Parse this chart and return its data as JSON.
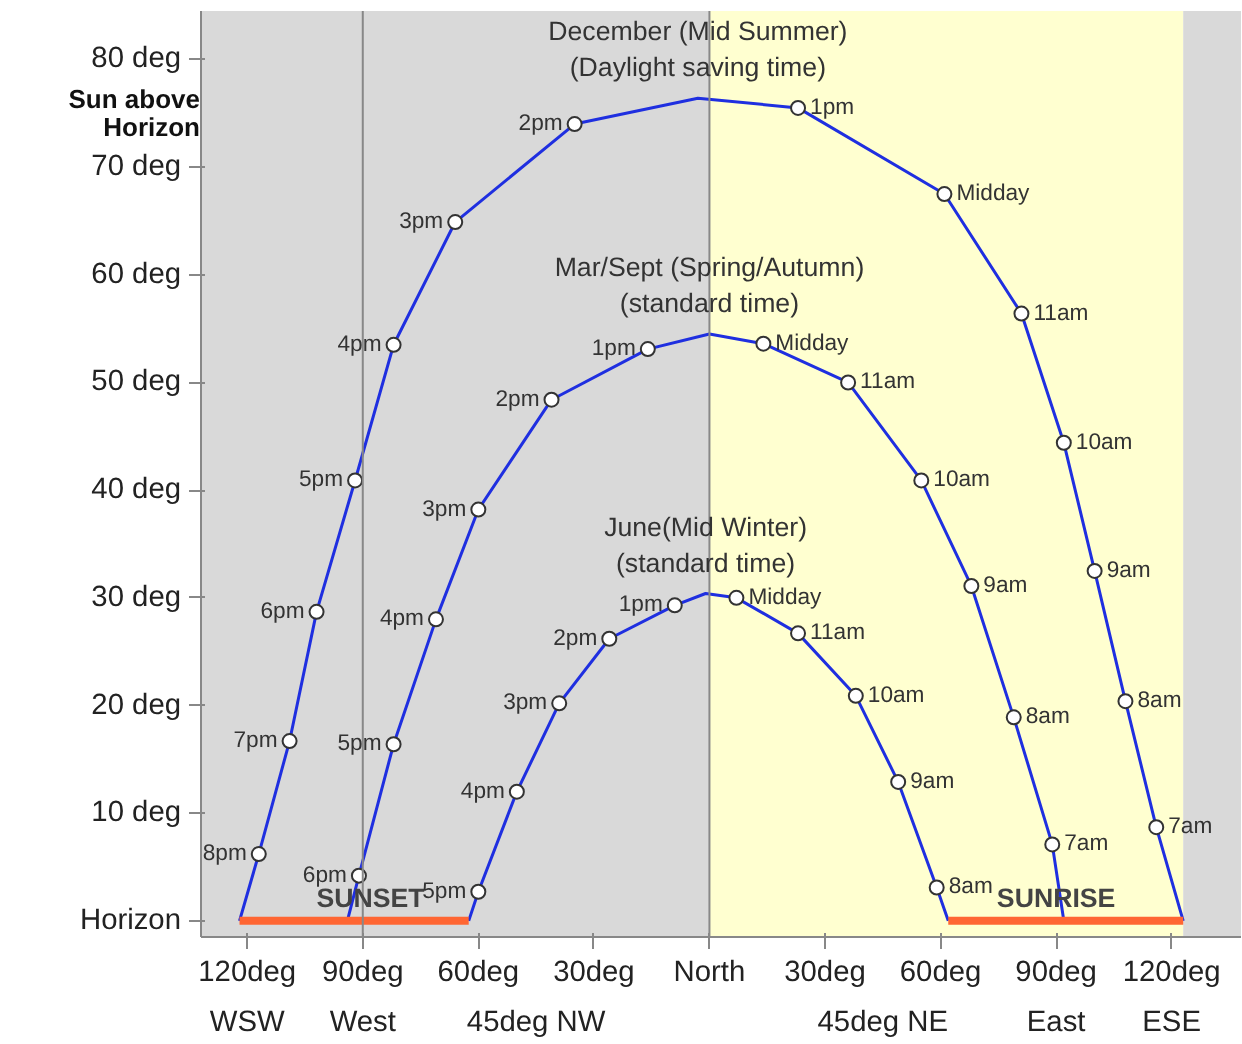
{
  "chart_data": {
    "type": "line",
    "ylabel": "Sun above\nHorizon",
    "xlim": [
      -132,
      138
    ],
    "ylim": [
      -1.5,
      84.5
    ],
    "xticks": [
      {
        "value": -120,
        "label": "120deg"
      },
      {
        "value": -90,
        "label": "90deg"
      },
      {
        "value": -60,
        "label": "60deg"
      },
      {
        "value": -30,
        "label": "30deg"
      },
      {
        "value": 0,
        "label": "North"
      },
      {
        "value": 30,
        "label": "30deg"
      },
      {
        "value": 60,
        "label": "60deg"
      },
      {
        "value": 90,
        "label": "90deg"
      },
      {
        "value": 120,
        "label": "120deg"
      }
    ],
    "x2lim": [
      -132,
      138
    ],
    "x2ticks": [
      {
        "value": -120,
        "label": "WSW"
      },
      {
        "value": -90,
        "label": "West"
      },
      {
        "value": -45,
        "label": "45deg NW"
      },
      {
        "value": 45,
        "label": "45deg NE"
      },
      {
        "value": 90,
        "label": "East"
      },
      {
        "value": 120,
        "label": "ESE"
      }
    ],
    "yticks": [
      {
        "value": 0,
        "label": "Horizon"
      },
      {
        "value": 10,
        "label": "10 deg"
      },
      {
        "value": 20,
        "label": "20 deg"
      },
      {
        "value": 30,
        "label": "30 deg"
      },
      {
        "value": 40,
        "label": "40 deg"
      },
      {
        "value": 50,
        "label": "50 deg"
      },
      {
        "value": 60,
        "label": "60 deg"
      },
      {
        "value": 70,
        "label": "70 deg"
      },
      {
        "value": 80,
        "label": "80 deg"
      }
    ],
    "line_style": "solid",
    "bands": [
      {
        "axis": "x",
        "from": -132,
        "to": 0,
        "label": null,
        "color": "#d9d9d9"
      },
      {
        "axis": "x",
        "from": 0,
        "to": 123,
        "label": null,
        "color": "#ffffd0"
      },
      {
        "axis": "x",
        "from": 123,
        "to": 138,
        "label": null,
        "color": "#d9d9d9"
      }
    ],
    "ref_lines": [
      {
        "axis": "x",
        "value": -90,
        "label": null,
        "color": "#888888"
      },
      {
        "axis": "x",
        "value": 0,
        "label": null,
        "color": "#888888"
      }
    ],
    "series": [
      {
        "name": "December (Mid Summer)\n(Daylight saving time)",
        "color": "#1f2fe0",
        "marker": "none",
        "x": [
          -122,
          -117,
          -109,
          -102,
          -92,
          -82,
          -66,
          -35,
          -3,
          23,
          61,
          81,
          92,
          100,
          108,
          116,
          123
        ],
        "values": [
          0,
          6.2,
          16.7,
          28.7,
          40.9,
          53.5,
          64.9,
          74,
          76.4,
          75.5,
          67.5,
          56.4,
          44.4,
          32.5,
          20.4,
          8.7,
          0
        ]
      },
      {
        "name": "Mar/Sept (Spring/Autumn)\n(standard time)",
        "color": "#1f2fe0",
        "marker": "none",
        "x": [
          -94,
          -91,
          -82,
          -71,
          -60,
          -41,
          -16,
          0,
          14,
          36,
          55,
          68,
          79,
          89,
          92
        ],
        "values": [
          0,
          4.2,
          16.4,
          28,
          38.2,
          48.4,
          53.1,
          54.5,
          53.6,
          50,
          40.9,
          31.1,
          18.9,
          7.1,
          0
        ]
      },
      {
        "name": "June(Mid Winter)\n(standard time)",
        "color": "#1f2fe0",
        "marker": "none",
        "x": [
          -62.5,
          -60,
          -50,
          -39,
          -26,
          -9,
          -1,
          7,
          23,
          38,
          49,
          59,
          62
        ],
        "values": [
          0,
          2.7,
          12,
          20.2,
          26.2,
          29.3,
          30.4,
          30,
          26.7,
          20.9,
          12.9,
          3.1,
          0
        ]
      },
      {
        "color": "#ff6633",
        "marker": "none",
        "x": [
          -122,
          -62.5
        ],
        "values": [
          0,
          0
        ]
      },
      {
        "color": "#ff6633",
        "marker": "none",
        "x": [
          62,
          123
        ],
        "values": [
          0,
          0
        ]
      },
      {
        "type": "scatter",
        "color": "#333333",
        "marker": "circle",
        "x": [
          -117,
          -109,
          -102,
          -92,
          -82,
          -66,
          -35,
          23,
          61,
          81,
          92,
          100,
          108,
          116,
          -91,
          -82,
          -71,
          -60,
          -41,
          -16,
          14,
          36,
          55,
          68,
          79,
          89,
          -60,
          -50,
          -39,
          -26,
          -9,
          7,
          23,
          38,
          49,
          59
        ],
        "values": [
          6.2,
          16.7,
          28.7,
          40.9,
          53.5,
          64.9,
          74,
          75.5,
          67.5,
          56.4,
          44.4,
          32.5,
          20.4,
          8.7,
          4.2,
          16.4,
          28,
          38.2,
          48.4,
          53.1,
          53.6,
          50,
          40.9,
          31.1,
          18.9,
          7.1,
          2.7,
          12,
          20.2,
          26.2,
          29.3,
          30,
          26.7,
          20.9,
          12.9,
          3.1
        ]
      }
    ],
    "annotations": [
      {
        "text": "SUNSET",
        "x": -88,
        "y": 0
      },
      {
        "text": "SUNRISE",
        "x": 90,
        "y": 0
      },
      {
        "text": "8pm",
        "x": -117,
        "y": 6.2
      },
      {
        "text": "7pm",
        "x": -109,
        "y": 16.7
      },
      {
        "text": "6pm",
        "x": -102,
        "y": 28.7
      },
      {
        "text": "5pm",
        "x": -92,
        "y": 40.9
      },
      {
        "text": "4pm",
        "x": -82,
        "y": 53.5
      },
      {
        "text": "3pm",
        "x": -66,
        "y": 64.9
      },
      {
        "text": "2pm",
        "x": -35,
        "y": 74
      },
      {
        "text": "1pm",
        "x": 23,
        "y": 75.5
      },
      {
        "text": "Midday",
        "x": 61,
        "y": 67.5
      },
      {
        "text": "11am",
        "x": 81,
        "y": 56.4
      },
      {
        "text": "10am",
        "x": 92,
        "y": 44.4
      },
      {
        "text": "9am",
        "x": 100,
        "y": 32.5
      },
      {
        "text": "8am",
        "x": 108,
        "y": 20.4
      },
      {
        "text": "7am",
        "x": 116,
        "y": 8.7
      },
      {
        "text": "6pm",
        "x": -91,
        "y": 4.2
      },
      {
        "text": "5pm",
        "x": -82,
        "y": 16.4
      },
      {
        "text": "4pm",
        "x": -71,
        "y": 28
      },
      {
        "text": "3pm",
        "x": -60,
        "y": 38.2
      },
      {
        "text": "2pm",
        "x": -41,
        "y": 48.4
      },
      {
        "text": "1pm",
        "x": -16,
        "y": 53.1
      },
      {
        "text": "Midday",
        "x": 14,
        "y": 53.6
      },
      {
        "text": "11am",
        "x": 36,
        "y": 50
      },
      {
        "text": "10am",
        "x": 55,
        "y": 40.9
      },
      {
        "text": "9am",
        "x": 68,
        "y": 31.1
      },
      {
        "text": "8am",
        "x": 79,
        "y": 18.9
      },
      {
        "text": "7am",
        "x": 89,
        "y": 7.1
      },
      {
        "text": "5pm",
        "x": -60,
        "y": 2.7
      },
      {
        "text": "4pm",
        "x": -50,
        "y": 12
      },
      {
        "text": "3pm",
        "x": -39,
        "y": 20.2
      },
      {
        "text": "2pm",
        "x": -26,
        "y": 26.2
      },
      {
        "text": "1pm",
        "x": -9,
        "y": 29.3
      },
      {
        "text": "Midday",
        "x": 7,
        "y": 30
      },
      {
        "text": "11am",
        "x": 23,
        "y": 26.7
      },
      {
        "text": "10am",
        "x": 38,
        "y": 20.9
      },
      {
        "text": "9am",
        "x": 49,
        "y": 12.9
      },
      {
        "text": "8am",
        "x": 59,
        "y": 3.1
      }
    ]
  }
}
